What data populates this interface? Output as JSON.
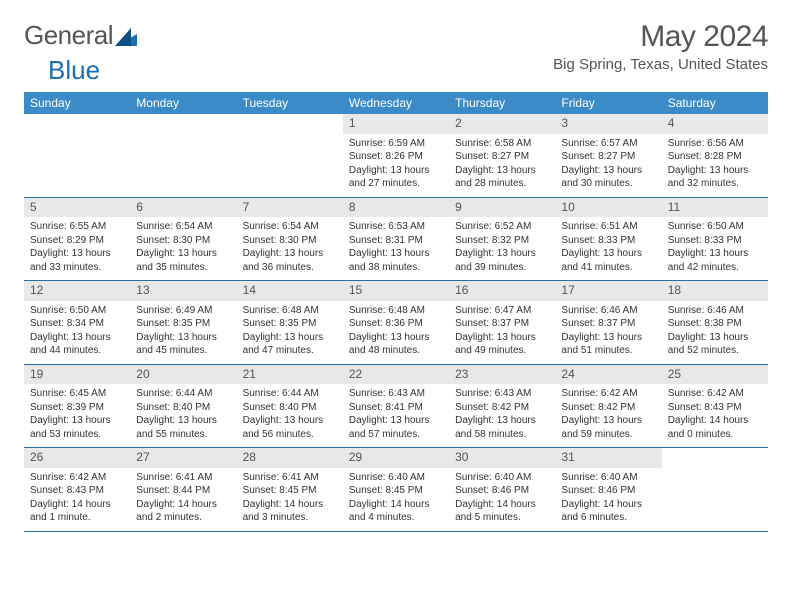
{
  "brand": {
    "part1": "General",
    "part2": "Blue"
  },
  "title": "May 2024",
  "location": "Big Spring, Texas, United States",
  "header_color": "#3b8bc9",
  "daynum_bg": "#e8e8e8",
  "border_color": "#2a6da8",
  "weekdays": [
    "Sunday",
    "Monday",
    "Tuesday",
    "Wednesday",
    "Thursday",
    "Friday",
    "Saturday"
  ],
  "weeks": [
    [
      {
        "empty": true
      },
      {
        "empty": true
      },
      {
        "empty": true
      },
      {
        "num": "1",
        "sunrise": "Sunrise: 6:59 AM",
        "sunset": "Sunset: 8:26 PM",
        "daylight": "Daylight: 13 hours and 27 minutes."
      },
      {
        "num": "2",
        "sunrise": "Sunrise: 6:58 AM",
        "sunset": "Sunset: 8:27 PM",
        "daylight": "Daylight: 13 hours and 28 minutes."
      },
      {
        "num": "3",
        "sunrise": "Sunrise: 6:57 AM",
        "sunset": "Sunset: 8:27 PM",
        "daylight": "Daylight: 13 hours and 30 minutes."
      },
      {
        "num": "4",
        "sunrise": "Sunrise: 6:56 AM",
        "sunset": "Sunset: 8:28 PM",
        "daylight": "Daylight: 13 hours and 32 minutes."
      }
    ],
    [
      {
        "num": "5",
        "sunrise": "Sunrise: 6:55 AM",
        "sunset": "Sunset: 8:29 PM",
        "daylight": "Daylight: 13 hours and 33 minutes."
      },
      {
        "num": "6",
        "sunrise": "Sunrise: 6:54 AM",
        "sunset": "Sunset: 8:30 PM",
        "daylight": "Daylight: 13 hours and 35 minutes."
      },
      {
        "num": "7",
        "sunrise": "Sunrise: 6:54 AM",
        "sunset": "Sunset: 8:30 PM",
        "daylight": "Daylight: 13 hours and 36 minutes."
      },
      {
        "num": "8",
        "sunrise": "Sunrise: 6:53 AM",
        "sunset": "Sunset: 8:31 PM",
        "daylight": "Daylight: 13 hours and 38 minutes."
      },
      {
        "num": "9",
        "sunrise": "Sunrise: 6:52 AM",
        "sunset": "Sunset: 8:32 PM",
        "daylight": "Daylight: 13 hours and 39 minutes."
      },
      {
        "num": "10",
        "sunrise": "Sunrise: 6:51 AM",
        "sunset": "Sunset: 8:33 PM",
        "daylight": "Daylight: 13 hours and 41 minutes."
      },
      {
        "num": "11",
        "sunrise": "Sunrise: 6:50 AM",
        "sunset": "Sunset: 8:33 PM",
        "daylight": "Daylight: 13 hours and 42 minutes."
      }
    ],
    [
      {
        "num": "12",
        "sunrise": "Sunrise: 6:50 AM",
        "sunset": "Sunset: 8:34 PM",
        "daylight": "Daylight: 13 hours and 44 minutes."
      },
      {
        "num": "13",
        "sunrise": "Sunrise: 6:49 AM",
        "sunset": "Sunset: 8:35 PM",
        "daylight": "Daylight: 13 hours and 45 minutes."
      },
      {
        "num": "14",
        "sunrise": "Sunrise: 6:48 AM",
        "sunset": "Sunset: 8:35 PM",
        "daylight": "Daylight: 13 hours and 47 minutes."
      },
      {
        "num": "15",
        "sunrise": "Sunrise: 6:48 AM",
        "sunset": "Sunset: 8:36 PM",
        "daylight": "Daylight: 13 hours and 48 minutes."
      },
      {
        "num": "16",
        "sunrise": "Sunrise: 6:47 AM",
        "sunset": "Sunset: 8:37 PM",
        "daylight": "Daylight: 13 hours and 49 minutes."
      },
      {
        "num": "17",
        "sunrise": "Sunrise: 6:46 AM",
        "sunset": "Sunset: 8:37 PM",
        "daylight": "Daylight: 13 hours and 51 minutes."
      },
      {
        "num": "18",
        "sunrise": "Sunrise: 6:46 AM",
        "sunset": "Sunset: 8:38 PM",
        "daylight": "Daylight: 13 hours and 52 minutes."
      }
    ],
    [
      {
        "num": "19",
        "sunrise": "Sunrise: 6:45 AM",
        "sunset": "Sunset: 8:39 PM",
        "daylight": "Daylight: 13 hours and 53 minutes."
      },
      {
        "num": "20",
        "sunrise": "Sunrise: 6:44 AM",
        "sunset": "Sunset: 8:40 PM",
        "daylight": "Daylight: 13 hours and 55 minutes."
      },
      {
        "num": "21",
        "sunrise": "Sunrise: 6:44 AM",
        "sunset": "Sunset: 8:40 PM",
        "daylight": "Daylight: 13 hours and 56 minutes."
      },
      {
        "num": "22",
        "sunrise": "Sunrise: 6:43 AM",
        "sunset": "Sunset: 8:41 PM",
        "daylight": "Daylight: 13 hours and 57 minutes."
      },
      {
        "num": "23",
        "sunrise": "Sunrise: 6:43 AM",
        "sunset": "Sunset: 8:42 PM",
        "daylight": "Daylight: 13 hours and 58 minutes."
      },
      {
        "num": "24",
        "sunrise": "Sunrise: 6:42 AM",
        "sunset": "Sunset: 8:42 PM",
        "daylight": "Daylight: 13 hours and 59 minutes."
      },
      {
        "num": "25",
        "sunrise": "Sunrise: 6:42 AM",
        "sunset": "Sunset: 8:43 PM",
        "daylight": "Daylight: 14 hours and 0 minutes."
      }
    ],
    [
      {
        "num": "26",
        "sunrise": "Sunrise: 6:42 AM",
        "sunset": "Sunset: 8:43 PM",
        "daylight": "Daylight: 14 hours and 1 minute."
      },
      {
        "num": "27",
        "sunrise": "Sunrise: 6:41 AM",
        "sunset": "Sunset: 8:44 PM",
        "daylight": "Daylight: 14 hours and 2 minutes."
      },
      {
        "num": "28",
        "sunrise": "Sunrise: 6:41 AM",
        "sunset": "Sunset: 8:45 PM",
        "daylight": "Daylight: 14 hours and 3 minutes."
      },
      {
        "num": "29",
        "sunrise": "Sunrise: 6:40 AM",
        "sunset": "Sunset: 8:45 PM",
        "daylight": "Daylight: 14 hours and 4 minutes."
      },
      {
        "num": "30",
        "sunrise": "Sunrise: 6:40 AM",
        "sunset": "Sunset: 8:46 PM",
        "daylight": "Daylight: 14 hours and 5 minutes."
      },
      {
        "num": "31",
        "sunrise": "Sunrise: 6:40 AM",
        "sunset": "Sunset: 8:46 PM",
        "daylight": "Daylight: 14 hours and 6 minutes."
      },
      {
        "empty": true
      }
    ]
  ]
}
